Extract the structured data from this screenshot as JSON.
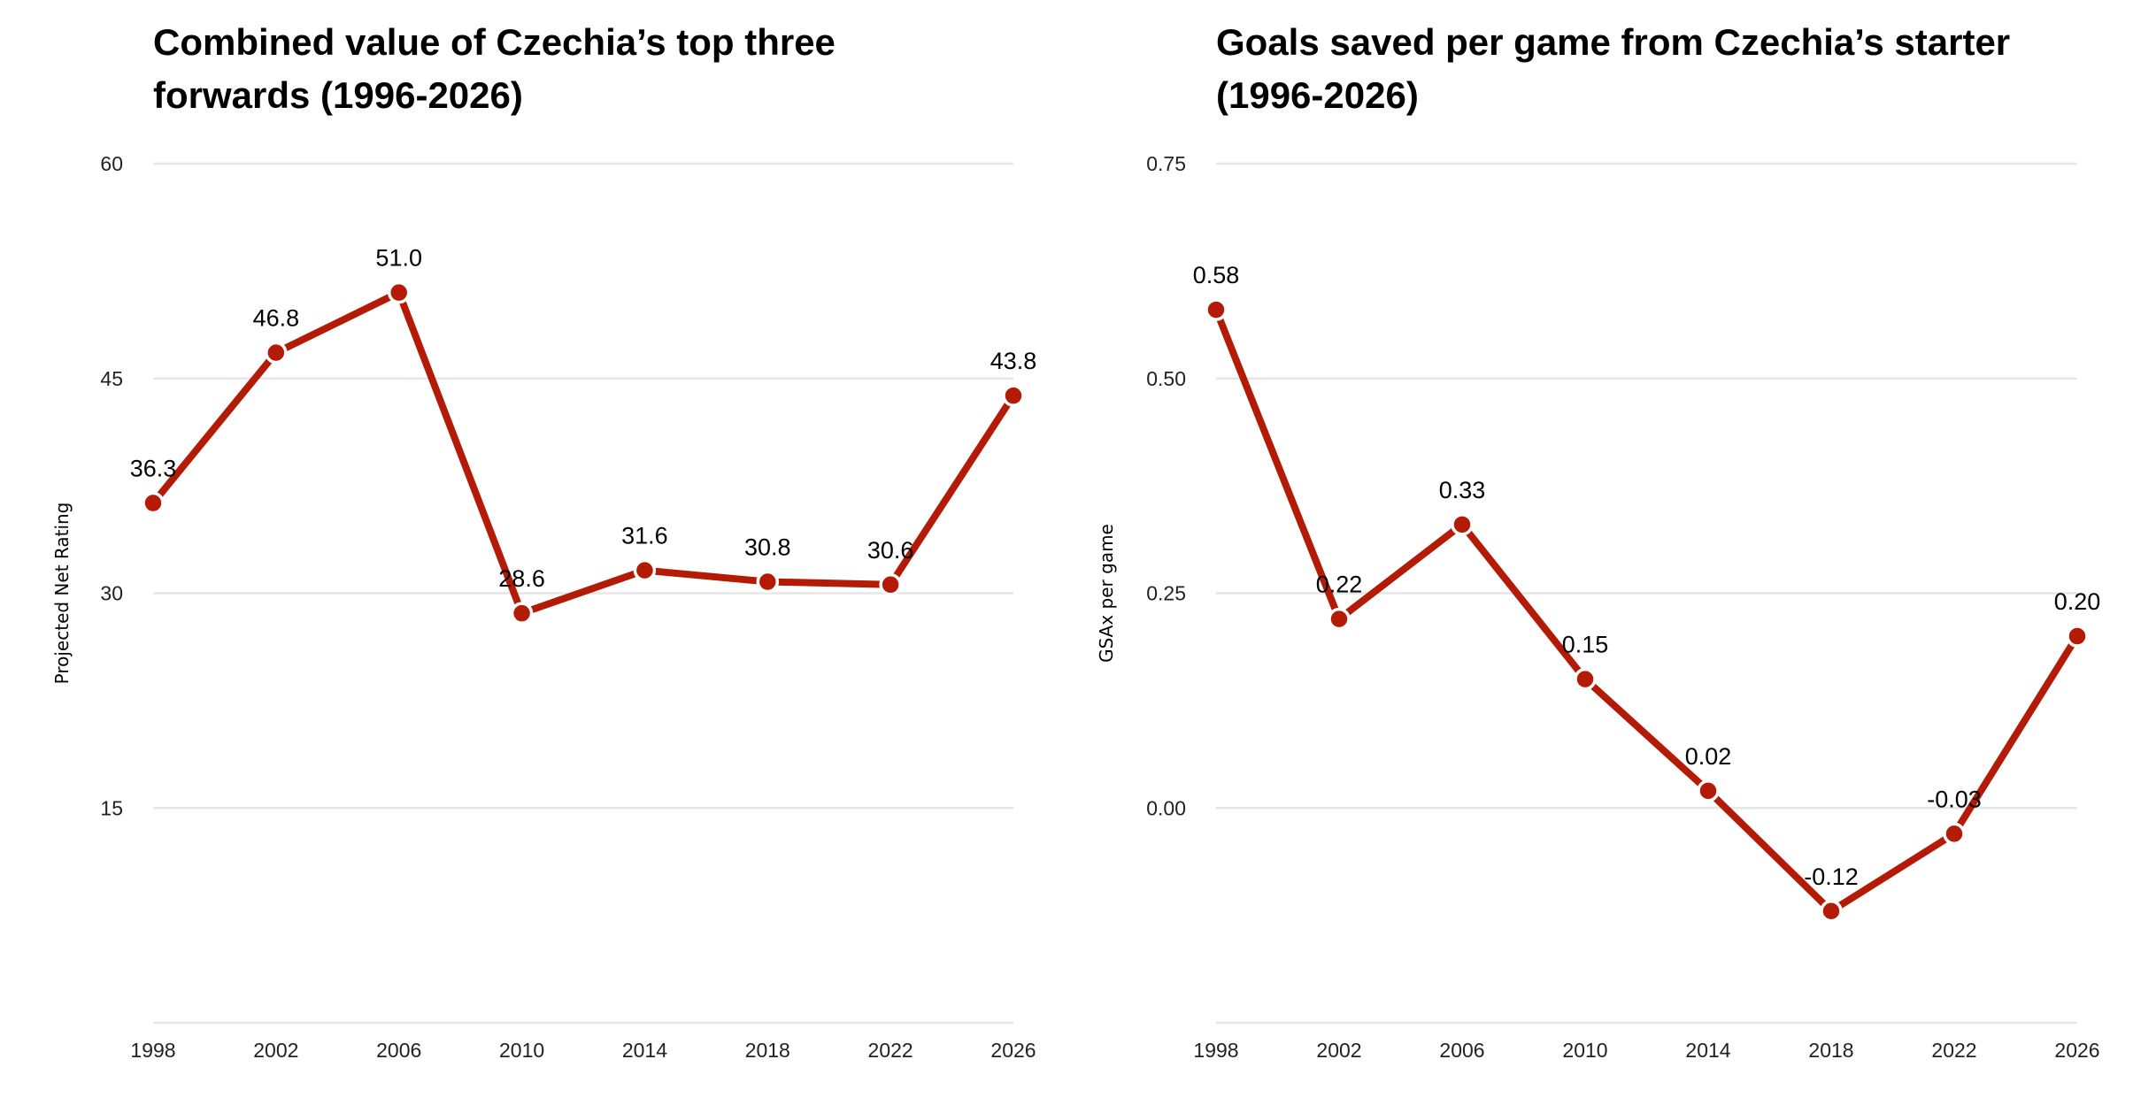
{
  "colors": {
    "line": "#b31b06",
    "grid": "#e6e6e6",
    "marker_outline": "#ffffff"
  },
  "chart_data": [
    {
      "type": "line",
      "title_lines": [
        "Combined value of Czechia’s top three",
        "forwards (1996-2026)"
      ],
      "xlabel": "",
      "ylabel": "Projected Net Rating",
      "x": [
        "1998",
        "2002",
        "2006",
        "2010",
        "2014",
        "2018",
        "2022",
        "2026"
      ],
      "values": [
        36.3,
        46.8,
        51.0,
        28.6,
        31.6,
        30.8,
        30.6,
        43.8
      ],
      "data_labels": [
        "36.3",
        "46.8",
        "51.0",
        "28.6",
        "31.6",
        "30.8",
        "30.6",
        "43.8"
      ],
      "ylim": [
        0,
        60
      ],
      "yticks": [
        0,
        15,
        30,
        45,
        60
      ],
      "ytick_labels": [
        "",
        "15",
        "30",
        "45",
        "60"
      ],
      "grid": true,
      "legend": "none"
    },
    {
      "type": "line",
      "title_lines": [
        "Goals saved per game from Czechia’s starter",
        "(1996-2026)"
      ],
      "xlabel": "",
      "ylabel": "GSAx per game",
      "x": [
        "1998",
        "2002",
        "2006",
        "2010",
        "2014",
        "2018",
        "2022",
        "2026"
      ],
      "values": [
        0.58,
        0.22,
        0.33,
        0.15,
        0.02,
        -0.12,
        -0.03,
        0.2
      ],
      "data_labels": [
        "0.58",
        "0.22",
        "0.33",
        "0.15",
        "0.02",
        "-0.12",
        "-0.03",
        "0.20"
      ],
      "ylim": [
        -0.25,
        0.75
      ],
      "yticks": [
        -0.25,
        0,
        0.25,
        0.5,
        0.75
      ],
      "ytick_labels": [
        "",
        "0.00",
        "0.25",
        "0.50",
        "0.75"
      ],
      "grid": true,
      "legend": "none"
    }
  ]
}
